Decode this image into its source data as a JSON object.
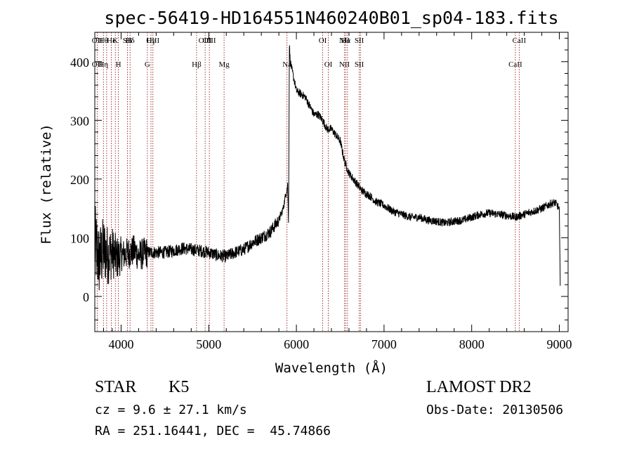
{
  "chart_data": {
    "type": "line",
    "title": "spec-56419-HD164551N460240B01_sp04-183.fits",
    "xlabel": "Wavelength (Å)",
    "ylabel": "Flux (relative)",
    "xlim": [
      3700,
      9100
    ],
    "ylim": [
      -60,
      450
    ],
    "xticks": [
      4000,
      5000,
      6000,
      7000,
      8000,
      9000
    ],
    "yticks": [
      0,
      100,
      200,
      300,
      400
    ],
    "grid": false,
    "series": [
      {
        "values_description_note": "",
        "x": [
          3700,
          3750,
          3800,
          3850,
          3900,
          3950,
          4000,
          4050,
          4100,
          4150,
          4200,
          4300,
          4400,
          4500,
          4600,
          4700,
          4800,
          4900,
          5000,
          5100,
          5200,
          5300,
          5400,
          5500,
          5600,
          5700,
          5750,
          5800,
          5850,
          5880,
          5900,
          5910,
          5920,
          5930,
          5950,
          5980,
          6000,
          6050,
          6100,
          6150,
          6200,
          6250,
          6300,
          6350,
          6400,
          6450,
          6500,
          6550,
          6600,
          6650,
          6700,
          6750,
          6800,
          6850,
          6900,
          7000,
          7100,
          7200,
          7300,
          7400,
          7500,
          7600,
          7700,
          7800,
          7900,
          8000,
          8100,
          8200,
          8300,
          8400,
          8500,
          8600,
          8700,
          8800,
          8900,
          8950,
          9000,
          9010
        ],
        "y": [
          90,
          60,
          80,
          70,
          75,
          65,
          70,
          72,
          75,
          78,
          70,
          75,
          75,
          75,
          78,
          82,
          80,
          78,
          75,
          70,
          68,
          75,
          80,
          92,
          100,
          110,
          120,
          130,
          150,
          175,
          190,
          130,
          430,
          400,
          385,
          365,
          350,
          345,
          340,
          325,
          310,
          310,
          300,
          285,
          285,
          275,
          265,
          230,
          210,
          200,
          190,
          180,
          175,
          170,
          162,
          155,
          145,
          140,
          135,
          135,
          130,
          128,
          125,
          128,
          130,
          135,
          140,
          142,
          140,
          138,
          135,
          140,
          145,
          150,
          158,
          160,
          150,
          20
        ]
      }
    ],
    "lines": [
      {
        "x": 3727,
        "top": "OII",
        "mid": "OII"
      },
      {
        "x": 3798,
        "top": "Hθ",
        "mid": "Hη"
      },
      {
        "x": 3835,
        "top": "",
        "mid": ""
      },
      {
        "x": 3889,
        "top": "He",
        "mid": ""
      },
      {
        "x": 3934,
        "top": "K",
        "mid": ""
      },
      {
        "x": 3969,
        "top": "",
        "mid": "H"
      },
      {
        "x": 4072,
        "top": "SII",
        "mid": ""
      },
      {
        "x": 4102,
        "top": "Hδ",
        "mid": ""
      },
      {
        "x": 4300,
        "top": "",
        "mid": "G"
      },
      {
        "x": 4341,
        "top": "Hγ",
        "mid": ""
      },
      {
        "x": 4363,
        "top": "OIII",
        "mid": ""
      },
      {
        "x": 4861,
        "top": "",
        "mid": "Hβ"
      },
      {
        "x": 4959,
        "top": "OIII",
        "mid": ""
      },
      {
        "x": 5007,
        "top": "OIII",
        "mid": ""
      },
      {
        "x": 5175,
        "top": "",
        "mid": "Mg"
      },
      {
        "x": 5893,
        "top": "",
        "mid": "Na"
      },
      {
        "x": 6300,
        "top": "OI",
        "mid": ""
      },
      {
        "x": 6364,
        "top": "",
        "mid": "OI"
      },
      {
        "x": 6548,
        "top": "NII",
        "mid": "NII"
      },
      {
        "x": 6563,
        "top": "Hα",
        "mid": ""
      },
      {
        "x": 6583,
        "top": "",
        "mid": ""
      },
      {
        "x": 6717,
        "top": "SII",
        "mid": "SII"
      },
      {
        "x": 6731,
        "top": "",
        "mid": ""
      },
      {
        "x": 8498,
        "top": "",
        "mid": "CaII"
      },
      {
        "x": 8542,
        "top": "CaII",
        "mid": ""
      }
    ]
  },
  "info": {
    "class": "STAR",
    "subclass": "K5",
    "survey": "LAMOST DR2",
    "redshift": "cz = 9.6 ± 27.1 km/s",
    "obs_date": "Obs-Date: 20130506",
    "coords": "RA = 251.16441, DEC =  45.74866"
  }
}
